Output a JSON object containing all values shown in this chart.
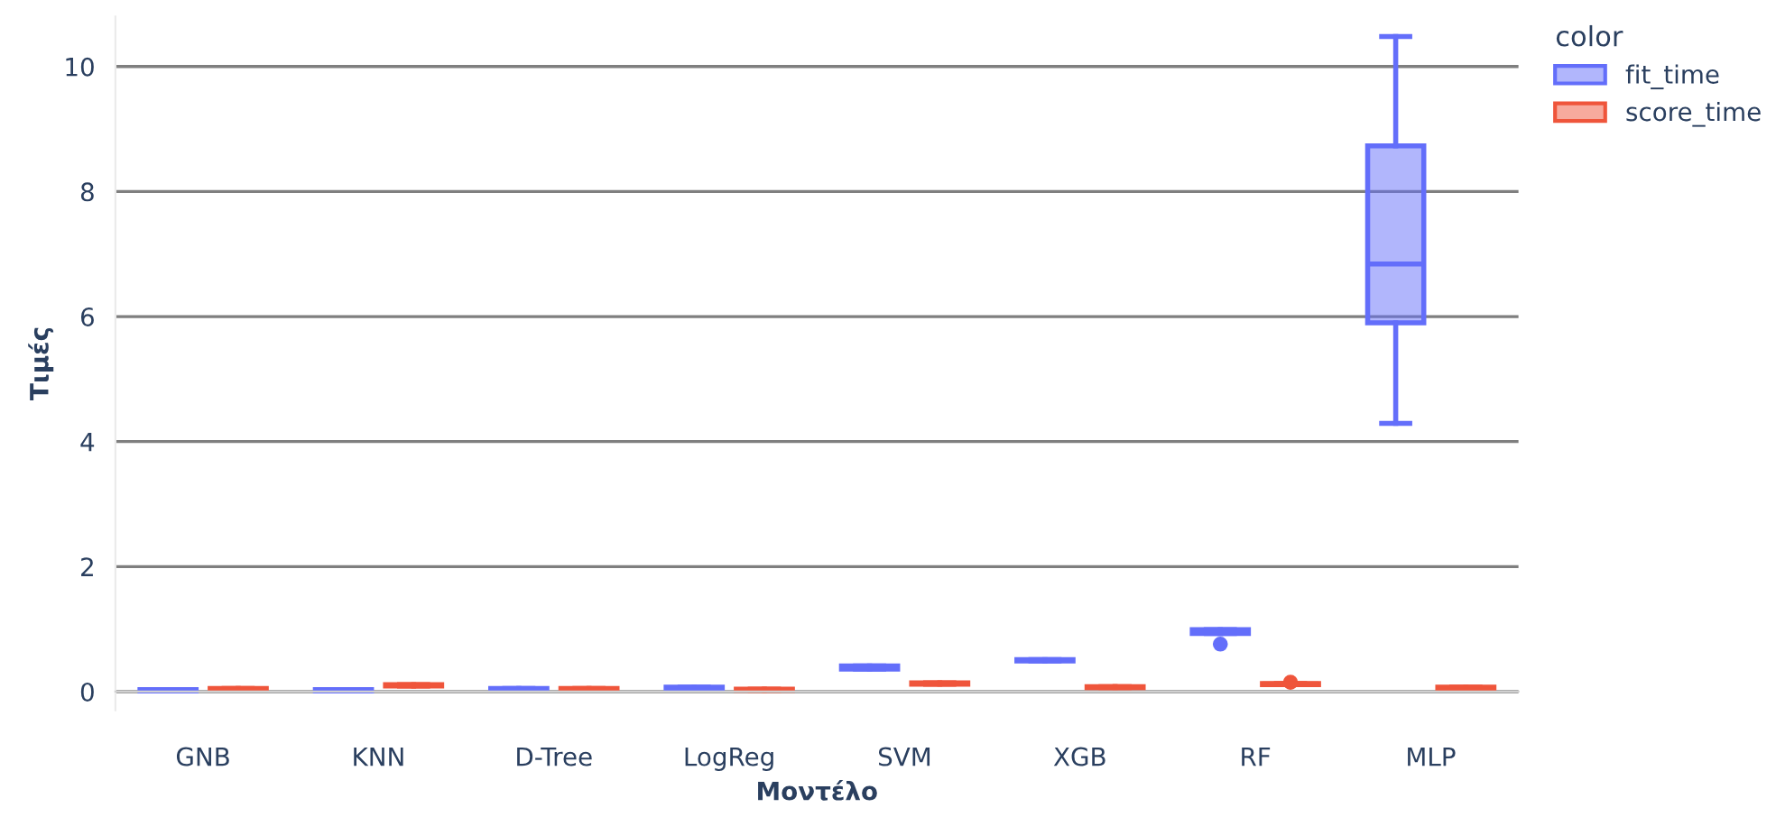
{
  "chart_data": {
    "type": "box",
    "xlabel": "Μοντέλο",
    "ylabel": "Τιμές",
    "legend_title": "color",
    "legend": "top right",
    "grid": "y",
    "categories": [
      "GNB",
      "KNN",
      "D-Tree",
      "LogReg",
      "SVM",
      "XGB",
      "RF",
      "MLP"
    ],
    "ylim": [
      -0.3,
      10.8
    ],
    "yticks": [
      0,
      2,
      4,
      6,
      8,
      10
    ],
    "series": [
      {
        "name": "fit_time",
        "color": "#636efa",
        "boxes": [
          {
            "low": 0.01,
            "q1": 0.01,
            "median": 0.02,
            "q3": 0.03,
            "high": 0.03
          },
          {
            "low": 0.01,
            "q1": 0.01,
            "median": 0.02,
            "q3": 0.03,
            "high": 0.03
          },
          {
            "low": 0.03,
            "q1": 0.03,
            "median": 0.04,
            "q3": 0.05,
            "high": 0.05
          },
          {
            "low": 0.05,
            "q1": 0.05,
            "median": 0.06,
            "q3": 0.07,
            "high": 0.07
          },
          {
            "low": 0.36,
            "q1": 0.36,
            "median": 0.39,
            "q3": 0.41,
            "high": 0.41
          },
          {
            "low": 0.49,
            "q1": 0.49,
            "median": 0.5,
            "q3": 0.51,
            "high": 0.51
          },
          {
            "low": 0.93,
            "q1": 0.93,
            "median": 0.96,
            "q3": 0.99,
            "high": 0.99,
            "outliers": [
              0.76
            ]
          },
          {
            "low": 4.29,
            "q1": 5.9,
            "median": 6.84,
            "q3": 8.73,
            "high": 10.48
          }
        ]
      },
      {
        "name": "score_time",
        "color": "#ef553b",
        "boxes": [
          {
            "low": 0.03,
            "q1": 0.03,
            "median": 0.04,
            "q3": 0.05,
            "high": 0.05
          },
          {
            "low": 0.09,
            "q1": 0.09,
            "median": 0.1,
            "q3": 0.11,
            "high": 0.11
          },
          {
            "low": 0.03,
            "q1": 0.03,
            "median": 0.04,
            "q3": 0.05,
            "high": 0.05
          },
          {
            "low": 0.02,
            "q1": 0.02,
            "median": 0.03,
            "q3": 0.04,
            "high": 0.04
          },
          {
            "low": 0.12,
            "q1": 0.12,
            "median": 0.13,
            "q3": 0.14,
            "high": 0.14
          },
          {
            "low": 0.06,
            "q1": 0.06,
            "median": 0.07,
            "q3": 0.08,
            "high": 0.08
          },
          {
            "low": 0.11,
            "q1": 0.11,
            "median": 0.12,
            "q3": 0.13,
            "high": 0.13,
            "outliers": [
              0.15
            ]
          },
          {
            "low": 0.05,
            "q1": 0.05,
            "median": 0.06,
            "q3": 0.07,
            "high": 0.07
          }
        ]
      }
    ]
  }
}
